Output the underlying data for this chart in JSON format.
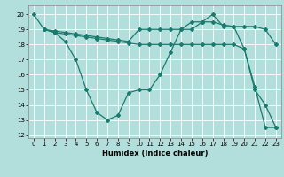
{
  "xlabel": "Humidex (Indice chaleur)",
  "background_color": "#b2dfdb",
  "grid_color": "#ffffff",
  "line_color": "#1a7a6e",
  "xlim": [
    -0.5,
    23.5
  ],
  "ylim": [
    11.8,
    20.6
  ],
  "yticks": [
    12,
    13,
    14,
    15,
    16,
    17,
    18,
    19,
    20
  ],
  "xticks": [
    0,
    1,
    2,
    3,
    4,
    5,
    6,
    7,
    8,
    9,
    10,
    11,
    12,
    13,
    14,
    15,
    16,
    17,
    18,
    19,
    20,
    21,
    22,
    23
  ],
  "series": [
    {
      "x": [
        0,
        1,
        2,
        3,
        4,
        5,
        6,
        7,
        8,
        9,
        10,
        11,
        12,
        13,
        14,
        15,
        16,
        17,
        18,
        19,
        20,
        21,
        22,
        23
      ],
      "y": [
        20,
        19,
        18.8,
        18.2,
        17.0,
        15.0,
        13.5,
        13.0,
        13.3,
        14.8,
        15.0,
        15.0,
        16.0,
        17.5,
        19.0,
        19.5,
        19.5,
        20.0,
        19.2,
        19.2,
        17.7,
        15.0,
        14.0,
        12.5
      ]
    },
    {
      "x": [
        1,
        2,
        3,
        4,
        5,
        6,
        7,
        8,
        9,
        10,
        11,
        12,
        13,
        14,
        15,
        16,
        17,
        18,
        19,
        20,
        21,
        22,
        23
      ],
      "y": [
        19,
        18.8,
        18.7,
        18.6,
        18.5,
        18.4,
        18.3,
        18.2,
        18.1,
        18.0,
        18.0,
        18.0,
        18.0,
        18.0,
        18.0,
        18.0,
        18.0,
        18.0,
        18.0,
        17.7,
        15.2,
        12.5,
        12.5
      ]
    },
    {
      "x": [
        1,
        2,
        3,
        4,
        5,
        6,
        7,
        8,
        9,
        10,
        11,
        12,
        13,
        14,
        15,
        16,
        17,
        18,
        19,
        20,
        21,
        22,
        23
      ],
      "y": [
        19,
        18.9,
        18.8,
        18.7,
        18.6,
        18.5,
        18.4,
        18.3,
        18.2,
        19.0,
        19.0,
        19.0,
        19.0,
        19.0,
        19.0,
        19.5,
        19.5,
        19.3,
        19.2,
        19.2,
        19.2,
        19.0,
        18.0
      ]
    }
  ]
}
